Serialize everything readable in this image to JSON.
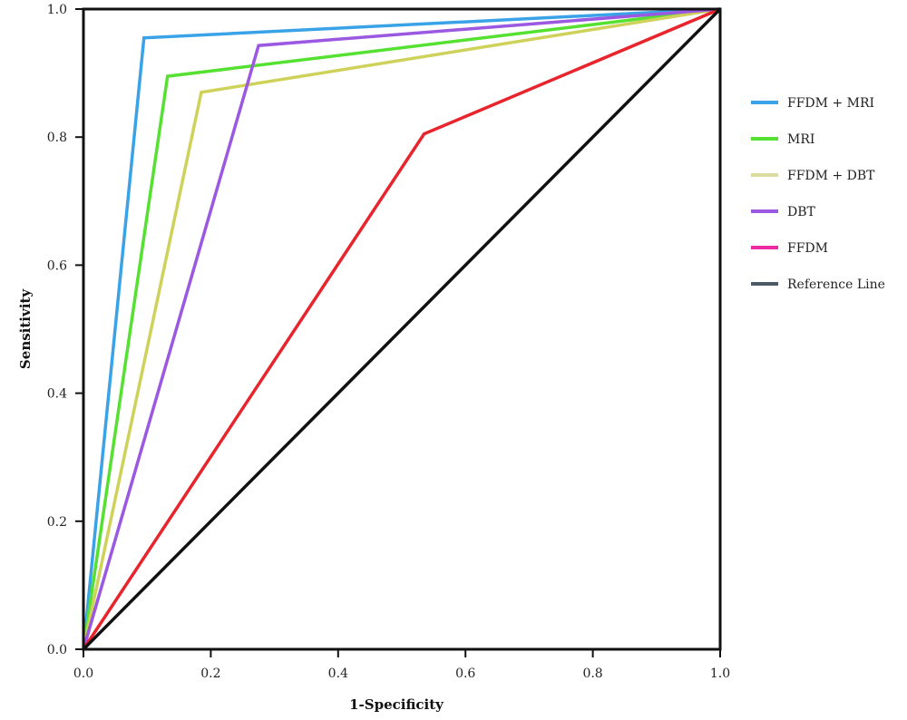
{
  "chart_data": {
    "type": "line",
    "title": "",
    "xlabel": "1-Specificity",
    "ylabel": "Sensitivity",
    "xlim": [
      0,
      1
    ],
    "ylim": [
      0,
      1
    ],
    "xticks": [
      "0.0",
      "0.2",
      "0.4",
      "0.6",
      "0.8",
      "1.0"
    ],
    "yticks": [
      "0.0",
      "0.2",
      "0.4",
      "0.6",
      "0.8",
      "1.0"
    ],
    "grid": false,
    "legend_position": "right",
    "series": [
      {
        "name": "FFDM + MRI",
        "color": "#3aa3e8",
        "legend_color": "#3aa3e8",
        "points": [
          [
            0,
            0
          ],
          [
            0.095,
            0.955
          ],
          [
            1,
            1
          ]
        ]
      },
      {
        "name": "MRI",
        "color": "#55e032",
        "legend_color": "#55e032",
        "points": [
          [
            0,
            0
          ],
          [
            0.132,
            0.895
          ],
          [
            1,
            1
          ]
        ]
      },
      {
        "name": "FFDM + DBT",
        "color": "#cfd25a",
        "legend_color": "#dcdca0",
        "points": [
          [
            0,
            0
          ],
          [
            0.185,
            0.87
          ],
          [
            1,
            1
          ]
        ]
      },
      {
        "name": "DBT",
        "color": "#9b58e0",
        "legend_color": "#9b58e0",
        "points": [
          [
            0,
            0
          ],
          [
            0.275,
            0.943
          ],
          [
            1,
            1
          ]
        ]
      },
      {
        "name": "FFDM",
        "color": "#e8242c",
        "legend_color": "#ee2aa0",
        "points": [
          [
            0,
            0
          ],
          [
            0.535,
            0.805
          ],
          [
            1,
            1
          ]
        ]
      },
      {
        "name": "Reference Line",
        "color": "#111111",
        "legend_color": "#4a5a66",
        "points": [
          [
            0,
            0
          ],
          [
            1,
            1
          ]
        ]
      }
    ]
  }
}
